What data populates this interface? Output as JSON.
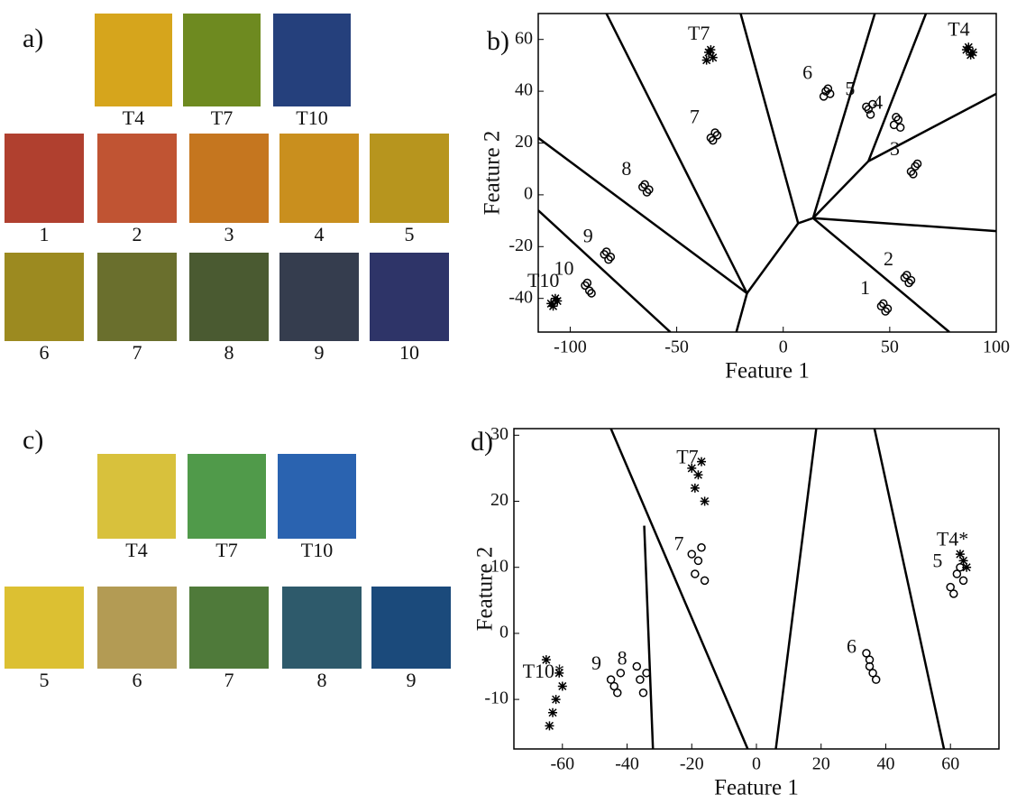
{
  "panels": [
    {
      "label": "a)",
      "rows": [
        [
          {
            "name": "T4",
            "color": "#d6a51c"
          },
          {
            "name": "T7",
            "color": "#6e8a20"
          },
          {
            "name": "T10",
            "color": "#25407c"
          }
        ],
        [
          {
            "name": "1",
            "color": "#b0402f"
          },
          {
            "name": "2",
            "color": "#c05433"
          },
          {
            "name": "3",
            "color": "#c5761f"
          },
          {
            "name": "4",
            "color": "#c98f1e"
          },
          {
            "name": "5",
            "color": "#b7951e"
          }
        ],
        [
          {
            "name": "6",
            "color": "#9c8a20"
          },
          {
            "name": "7",
            "color": "#6a6f2d"
          },
          {
            "name": "8",
            "color": "#4a5a31"
          },
          {
            "name": "9",
            "color": "#353d4e"
          },
          {
            "name": "10",
            "color": "#2e3468"
          }
        ]
      ]
    },
    {
      "label": "c)",
      "rows": [
        [
          {
            "name": "T4",
            "color": "#d8c13c"
          },
          {
            "name": "T7",
            "color": "#509a4a"
          },
          {
            "name": "T10",
            "color": "#2a63b0"
          }
        ],
        [
          {
            "name": "5",
            "color": "#dcc032"
          },
          {
            "name": "6",
            "color": "#b39b54"
          },
          {
            "name": "7",
            "color": "#4f7a3a"
          },
          {
            "name": "8",
            "color": "#2e5a6b"
          },
          {
            "name": "9",
            "color": "#1b4a7b"
          }
        ]
      ]
    }
  ],
  "chart_data": [
    {
      "type": "scatter",
      "panel_label": "b)",
      "x_label": "Feature 1",
      "y_label": "Feature 2",
      "xlim": [
        -115,
        100
      ],
      "ylim": [
        -53,
        70
      ],
      "xticks": [
        -100,
        -50,
        0,
        50,
        100
      ],
      "yticks": [
        -40,
        -20,
        0,
        20,
        40,
        60
      ],
      "series": [
        {
          "name": "T7",
          "marker": "*",
          "x": [
            -35,
            -33,
            -34,
            -36
          ],
          "y": [
            55,
            53,
            56,
            52
          ]
        },
        {
          "name": "7",
          "marker": "o",
          "x": [
            -34,
            -32,
            -33,
            -31
          ],
          "y": [
            22,
            24,
            21,
            23
          ]
        },
        {
          "name": "6",
          "marker": "o",
          "x": [
            19,
            21,
            20,
            22
          ],
          "y": [
            38,
            41,
            40,
            39
          ]
        },
        {
          "name": "5",
          "marker": "o",
          "x": [
            40,
            42,
            41,
            39
          ],
          "y": [
            33,
            35,
            31,
            34
          ]
        },
        {
          "name": "4",
          "marker": "o",
          "x": [
            52,
            54,
            55,
            53
          ],
          "y": [
            27,
            29,
            26,
            30
          ]
        },
        {
          "name": "T4",
          "marker": "*",
          "x": [
            86,
            88,
            87,
            89
          ],
          "y": [
            56,
            54,
            57,
            55
          ]
        },
        {
          "name": "3",
          "marker": "o",
          "x": [
            60,
            62,
            61,
            63
          ],
          "y": [
            9,
            11,
            8,
            12
          ]
        },
        {
          "name": "8",
          "marker": "o",
          "x": [
            -66,
            -64,
            -65,
            -63
          ],
          "y": [
            3,
            1,
            4,
            2
          ]
        },
        {
          "name": "9",
          "marker": "o",
          "x": [
            -84,
            -82,
            -83,
            -81
          ],
          "y": [
            -23,
            -25,
            -22,
            -24
          ]
        },
        {
          "name": "10",
          "marker": "o",
          "x": [
            -93,
            -91,
            -92,
            -90
          ],
          "y": [
            -35,
            -37,
            -34,
            -38
          ]
        },
        {
          "name": "T10",
          "marker": "*",
          "x": [
            -109,
            -107,
            -108,
            -106
          ],
          "y": [
            -42,
            -40,
            -43,
            -41
          ]
        },
        {
          "name": "2",
          "marker": "o",
          "x": [
            57,
            59,
            58,
            60
          ],
          "y": [
            -32,
            -34,
            -31,
            -33
          ]
        },
        {
          "name": "1",
          "marker": "o",
          "x": [
            46,
            48,
            47,
            49
          ],
          "y": [
            -43,
            -45,
            -42,
            -44
          ]
        }
      ],
      "boundaries": [
        {
          "x": [
            -83,
            -17,
            -22
          ],
          "y": [
            70,
            -38,
            -53
          ]
        },
        {
          "x": [
            -17,
            7,
            14
          ],
          "y": [
            -38,
            -11,
            -9
          ]
        },
        {
          "x": [
            -20,
            7
          ],
          "y": [
            70,
            -11
          ]
        },
        {
          "x": [
            14,
            43
          ],
          "y": [
            -9,
            70
          ]
        },
        {
          "x": [
            14,
            40,
            67
          ],
          "y": [
            -9,
            13,
            70
          ]
        },
        {
          "x": [
            40,
            100
          ],
          "y": [
            13,
            39
          ]
        },
        {
          "x": [
            14,
            100
          ],
          "y": [
            -9,
            -14
          ]
        },
        {
          "x": [
            14,
            78
          ],
          "y": [
            -9,
            -53
          ]
        },
        {
          "x": [
            -115,
            -17
          ],
          "y": [
            22,
            -38
          ]
        },
        {
          "x": [
            -115,
            -53
          ],
          "y": [
            -6,
            -53
          ]
        }
      ]
    },
    {
      "type": "scatter",
      "panel_label": "d)",
      "x_label": "Feature 1",
      "y_label": "Feature 2",
      "xlim": [
        -75,
        75
      ],
      "ylim": [
        -17.5,
        31
      ],
      "xticks": [
        -60,
        -40,
        -20,
        0,
        20,
        40,
        60
      ],
      "yticks": [
        -10,
        0,
        10,
        20,
        30
      ],
      "series": [
        {
          "name": "T7",
          "marker": "*",
          "x": [
            -19,
            -17,
            -18,
            -16,
            -20
          ],
          "y": [
            22,
            26,
            24,
            20,
            25
          ]
        },
        {
          "name": "7",
          "marker": "o",
          "x": [
            -19,
            -17,
            -18,
            -16,
            -20
          ],
          "y": [
            9,
            13,
            11,
            8,
            12
          ]
        },
        {
          "name": "5",
          "marker": "o",
          "x": [
            60,
            62,
            63,
            64,
            61
          ],
          "y": [
            7,
            9,
            10,
            8,
            6
          ]
        },
        {
          "name": "T4*",
          "marker": "*",
          "x": [
            64,
            65,
            63
          ],
          "y": [
            11,
            10,
            12
          ]
        },
        {
          "name": "6",
          "marker": "o",
          "x": [
            34,
            36,
            35,
            37,
            35
          ],
          "y": [
            -3,
            -6,
            -5,
            -7,
            -4
          ]
        },
        {
          "name": "9",
          "marker": "o",
          "x": [
            -45,
            -43,
            -44,
            -42
          ],
          "y": [
            -7,
            -9,
            -8,
            -6
          ]
        },
        {
          "name": "8",
          "marker": "o",
          "x": [
            -37,
            -35,
            -36,
            -34
          ],
          "y": [
            -5,
            -9,
            -7,
            -6
          ]
        },
        {
          "name": "T10*",
          "marker": "*",
          "x": [
            -65,
            -62,
            -63,
            -60,
            -64,
            -61
          ],
          "y": [
            -4,
            -10,
            -12,
            -8,
            -14,
            -6
          ]
        }
      ],
      "boundaries": [
        {
          "x": [
            -45,
            -2.7
          ],
          "y": [
            31,
            -17.5
          ]
        },
        {
          "x": [
            -34.7,
            -32
          ],
          "y": [
            16.3,
            -17.5
          ]
        },
        {
          "x": [
            18.5,
            6
          ],
          "y": [
            31,
            -17.5
          ]
        },
        {
          "x": [
            36.5,
            58
          ],
          "y": [
            31,
            -17.5
          ]
        }
      ]
    }
  ]
}
